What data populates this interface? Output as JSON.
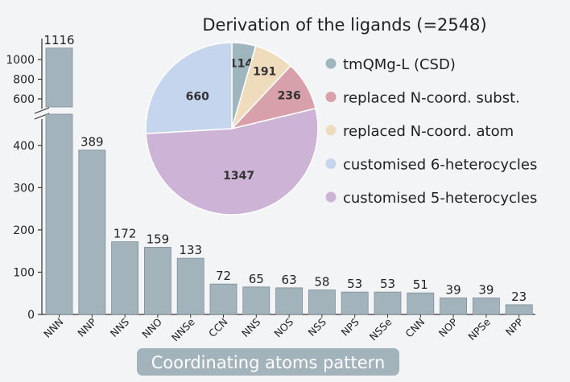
{
  "chart_data": [
    {
      "type": "bar",
      "xlabel": "Coordinating atoms pattern",
      "categories": [
        "NNN",
        "NNP",
        "NNS",
        "NNO",
        "NNSe",
        "CCN",
        "NNS",
        "NOS",
        "NSS",
        "NPS",
        "NSSe",
        "CNN",
        "NOP",
        "NPSe",
        "NPP"
      ],
      "values": [
        1116,
        389,
        172,
        159,
        133,
        72,
        65,
        63,
        58,
        53,
        53,
        51,
        39,
        39,
        23
      ],
      "axis_break": [
        450,
        550
      ],
      "lower_ticks": [
        "0",
        "100",
        "200",
        "300",
        "400"
      ],
      "upper_ticks": [
        "600",
        "800",
        "1000"
      ],
      "color": "#a3b3bc"
    },
    {
      "type": "pie",
      "title": "Derivation of the ligands (=2548)",
      "slices": [
        {
          "name": "tmQMg-L (CSD)",
          "value": 114,
          "color": "#9fb6bf"
        },
        {
          "name": "replaced N-coord. subst.",
          "value": 236,
          "color": "#d8a0aa"
        },
        {
          "name": "replaced N-coord. atom",
          "value": 191,
          "color": "#efdcbd"
        },
        {
          "name": "customised 6-heterocycles",
          "value": 660,
          "color": "#c5d5ee"
        },
        {
          "name": "customised 5-heterocycles",
          "value": 1347,
          "color": "#cdb4d6"
        }
      ],
      "draw_order": [
        0,
        2,
        1,
        4,
        3
      ]
    }
  ]
}
